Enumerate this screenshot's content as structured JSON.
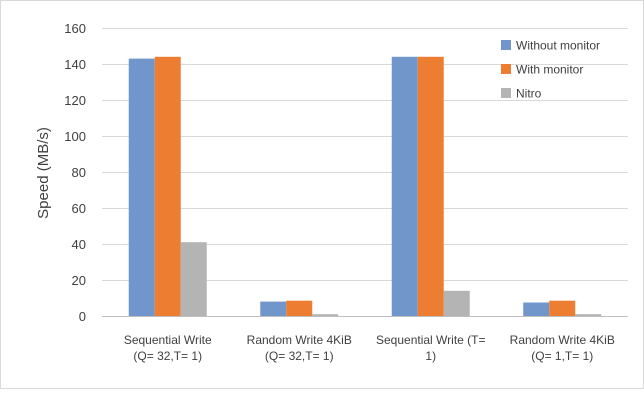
{
  "chart_data": {
    "type": "bar",
    "ylabel": "Speed (MB/s)",
    "xlabel": "",
    "ylim": [
      0,
      160
    ],
    "yticks": [
      0,
      20,
      40,
      60,
      80,
      100,
      120,
      140,
      160
    ],
    "grid": true,
    "legend_position": "top-right",
    "categories": [
      [
        "Sequential Write",
        "(Q= 32,T= 1)"
      ],
      [
        "Random Write 4KiB",
        "(Q= 32,T= 1)"
      ],
      [
        "Sequential Write (T=",
        "1)"
      ],
      [
        "Random Write 4KiB",
        "(Q= 1,T= 1)"
      ]
    ],
    "series": [
      {
        "name": "Without monitor",
        "color": "#7096CC",
        "values": [
          143,
          8,
          144,
          7.5
        ]
      },
      {
        "name": "With monitor",
        "color": "#ED7D31",
        "values": [
          144,
          8.5,
          144,
          8.5
        ]
      },
      {
        "name": "Nitro",
        "color": "#B4B4B4",
        "values": [
          41,
          1,
          14,
          1
        ]
      }
    ]
  }
}
